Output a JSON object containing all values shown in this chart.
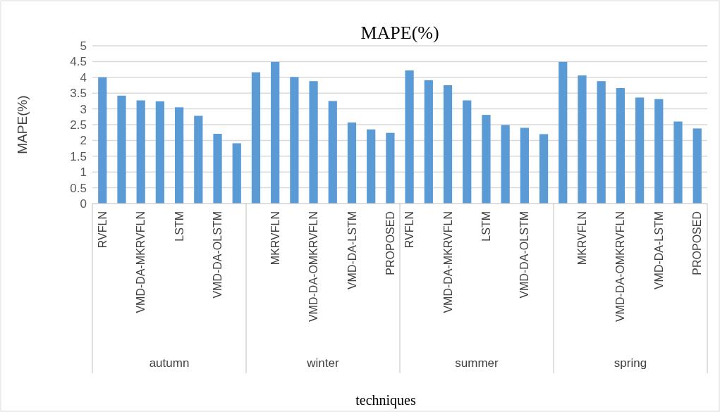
{
  "chart_data": {
    "type": "bar",
    "title": "MAPE(%)",
    "xlabel": "techniques",
    "ylabel": "MAPE(%)",
    "categories": [
      "RVFLN",
      null,
      "VMD-DA-MKRVFLN",
      null,
      "LSTM",
      null,
      "VMD-DA-OLSTM",
      null,
      null,
      "MKRVFLN",
      null,
      "VMD-DA-OMKRVFLN",
      null,
      "VMD-DA-LSTM",
      null,
      "PROPOSED",
      "RVFLN",
      null,
      "VMD-DA-MKRVFLN",
      null,
      "LSTM",
      null,
      "VMD-DA-OLSTM",
      null,
      null,
      "MKRVFLN",
      null,
      "VMD-DA-OMKRVFLN",
      null,
      "VMD-DA-LSTM",
      null,
      "PROPOSED"
    ],
    "values": [
      4.0,
      3.42,
      3.27,
      3.24,
      3.05,
      2.78,
      2.21,
      1.91,
      4.16,
      4.49,
      4.01,
      3.88,
      3.25,
      2.57,
      2.35,
      2.24,
      4.22,
      3.91,
      3.75,
      3.27,
      2.81,
      2.49,
      2.4,
      2.2,
      4.49,
      4.06,
      3.88,
      3.66,
      3.36,
      3.31,
      2.6,
      2.38
    ],
    "color": "#5b9bd5",
    "ylim": [
      0,
      5
    ],
    "yticks": [
      0,
      0.5,
      1,
      1.5,
      2,
      2.5,
      3,
      3.5,
      4,
      4.5,
      5
    ],
    "grid": "y",
    "annotations": [
      "autumn",
      "winter",
      "summer",
      "spring"
    ]
  }
}
